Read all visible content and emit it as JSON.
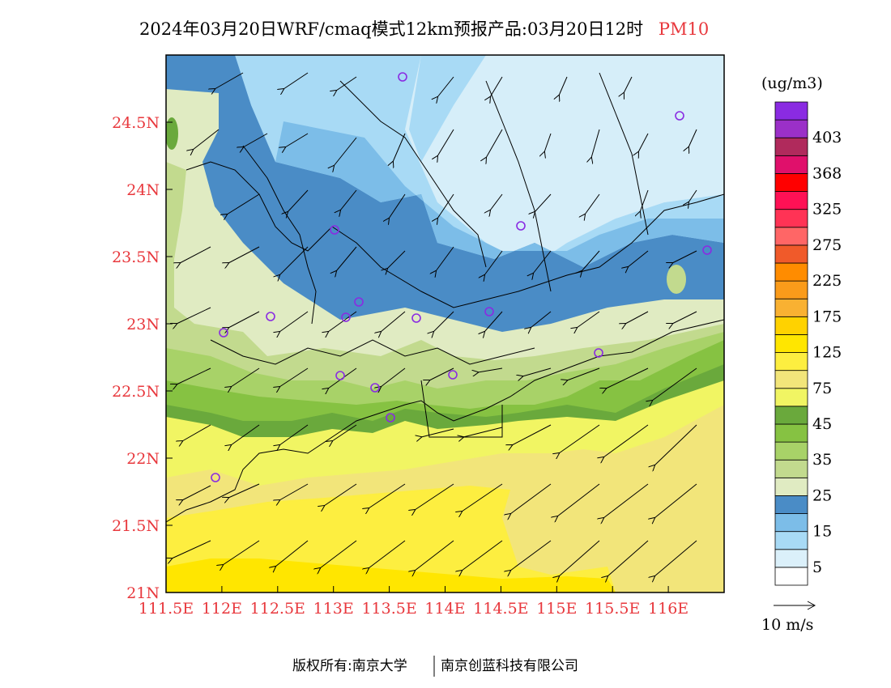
{
  "title": {
    "main": "2024年03月20日WRF/cmaq模式12km预报产品:03月20日12时",
    "variable": "PM10"
  },
  "map": {
    "lon_range": [
      111.5,
      116.5
    ],
    "lat_range": [
      21.0,
      25.0
    ],
    "x_ticks": [
      "111.5E",
      "112E",
      "112.5E",
      "113E",
      "113.5E",
      "114E",
      "114.5E",
      "115E",
      "115.5E",
      "116E"
    ],
    "y_ticks": [
      "21N",
      "21.5N",
      "22N",
      "22.5N",
      "23N",
      "23.5N",
      "24N",
      "24.5N"
    ]
  },
  "colorbar": {
    "unit": "(ug/m3)",
    "levels": [
      {
        "color": "#ffffff",
        "label": ""
      },
      {
        "color": "#dbf0fa",
        "label": "5"
      },
      {
        "color": "#a8daf5",
        "label": ""
      },
      {
        "color": "#7cbde8",
        "label": "15"
      },
      {
        "color": "#4a8cc6",
        "label": ""
      },
      {
        "color": "#e0ebc2",
        "label": "25"
      },
      {
        "color": "#c2da8e",
        "label": ""
      },
      {
        "color": "#a8d268",
        "label": "35"
      },
      {
        "color": "#86c242",
        "label": ""
      },
      {
        "color": "#6aa93c",
        "label": "45"
      },
      {
        "color": "#f1f563",
        "label": ""
      },
      {
        "color": "#f2e57a",
        "label": "75"
      },
      {
        "color": "#fdee40",
        "label": ""
      },
      {
        "color": "#ffe600",
        "label": "125"
      },
      {
        "color": "#ffd200",
        "label": ""
      },
      {
        "color": "#f9b132",
        "label": "175"
      },
      {
        "color": "#fa9b1a",
        "label": ""
      },
      {
        "color": "#ff8c00",
        "label": "225"
      },
      {
        "color": "#f05a2a",
        "label": ""
      },
      {
        "color": "#ff6666",
        "label": "275"
      },
      {
        "color": "#ff3355",
        "label": ""
      },
      {
        "color": "#ff1155",
        "label": "325"
      },
      {
        "color": "#ff0000",
        "label": ""
      },
      {
        "color": "#e0106b",
        "label": "368"
      },
      {
        "color": "#b02a5c",
        "label": ""
      },
      {
        "color": "#9b30c8",
        "label": "403"
      },
      {
        "color": "#8a2be2",
        "label": ""
      }
    ]
  },
  "wind_legend": {
    "label": "10 m/s"
  },
  "footer": {
    "left": "版权所有:南京大学",
    "right": "南京创蓝科技有限公司"
  },
  "colors": {
    "accent": "#e8383d",
    "station": "#8a2be2"
  }
}
